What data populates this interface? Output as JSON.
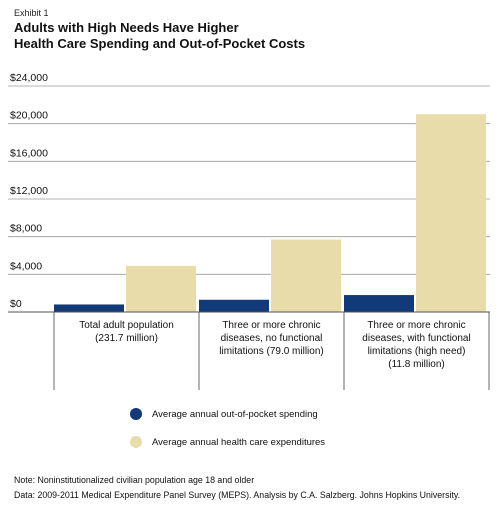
{
  "exhibit": "Exhibit 1",
  "title_lines": [
    "Adults with High Needs Have Higher",
    "Health Care Spending and Out-of-Pocket Costs"
  ],
  "chart_data": {
    "type": "bar",
    "ylim": [
      0,
      24000
    ],
    "yticks": [
      0,
      4000,
      8000,
      12000,
      16000,
      20000,
      24000
    ],
    "ytick_labels": [
      "$0",
      "$4,000",
      "$8,000",
      "$12,000",
      "$16,000",
      "$20,000",
      "$24,000"
    ],
    "categories": [
      [
        "Total adult population",
        "(231.7 million)"
      ],
      [
        "Three or more chronic",
        "diseases, no functional",
        "limitations (79.0 million)"
      ],
      [
        "Three or more chronic",
        "diseases, with functional",
        "limitations (high need)",
        "(11.8 million)"
      ]
    ],
    "series": [
      {
        "name": "Average annual out-of-pocket spending",
        "color": "#123a78",
        "values": [
          800,
          1300,
          1800
        ]
      },
      {
        "name": "Average annual health care expenditures",
        "color": "#e8dcaa",
        "values": [
          4900,
          7700,
          21000
        ]
      }
    ],
    "legend_position": "bottom"
  },
  "notes": [
    "Note: Noninstitutionalized civilian population age 18 and older",
    "Data: 2009-2011 Medical Expenditure Panel Survey (MEPS). Analysis by C.A. Salzberg. Johns Hopkins University."
  ]
}
